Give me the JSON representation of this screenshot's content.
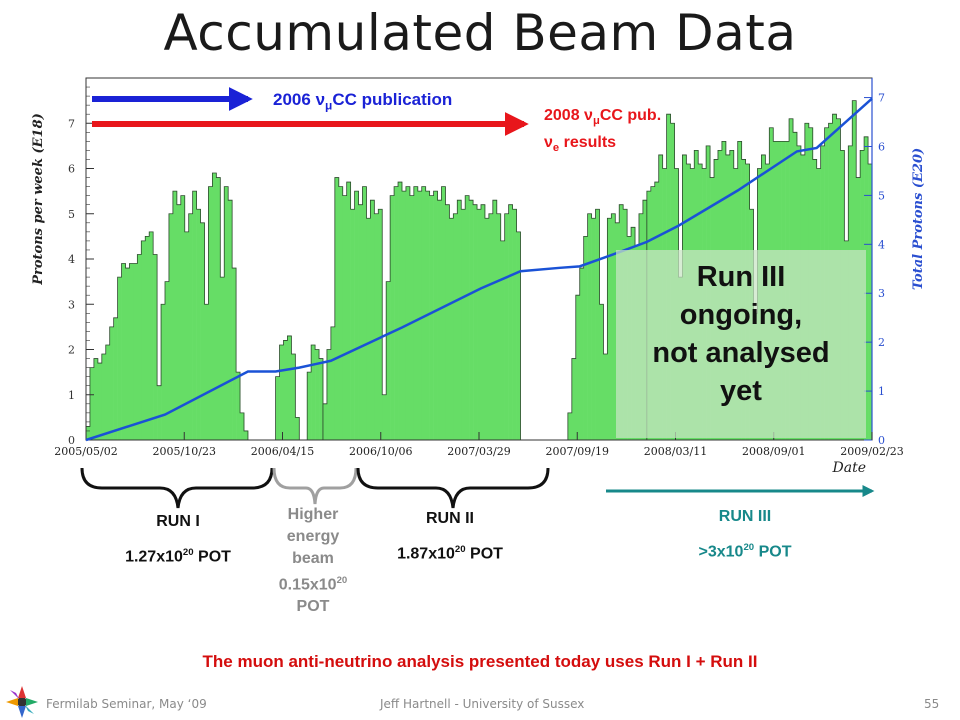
{
  "slide": {
    "title": "Accumulated Beam Data",
    "conclusion": "The muon anti-neutrino analysis presented today uses Run I + Run II",
    "footer_left": "Fermilab Seminar, May ‘09",
    "footer_center": "Jeff Hartnell - University of Sussex",
    "page_number": "55"
  },
  "annotations": {
    "pub_2006": {
      "year": "2006",
      "nu": "ν",
      "mu": "μ",
      "rest": "CC publication",
      "color": "#1a22d6"
    },
    "pub_2008": {
      "year": "2008",
      "nu": "ν",
      "mu": "μ",
      "rest": "CC pub.",
      "nu_e": "ν",
      "e_sub": "e",
      "results": "results",
      "color": "#e8161b"
    },
    "run3_overlay": [
      "Run III",
      "ongoing,",
      "not analysed",
      "yet"
    ]
  },
  "runs": [
    {
      "name": "RUN I",
      "pot_mantissa": "1.27x10",
      "pot_exp": "20",
      "pot_unit": "POT",
      "color": "#111111"
    },
    {
      "name_lines": [
        "Higher",
        "energy",
        "beam"
      ],
      "pot_mantissa": "0.15x10",
      "pot_exp": "20",
      "pot_unit": "POT",
      "color": "#8a8a8a"
    },
    {
      "name": "RUN II",
      "pot_mantissa": "1.87x10",
      "pot_exp": "20",
      "pot_unit": "POT",
      "color": "#111111"
    },
    {
      "name": "RUN III",
      "pot_prefix": ">3x10",
      "pot_exp": "20",
      "pot_unit": "POT",
      "color": "#17888a"
    }
  ],
  "chart_data": {
    "type": "bar",
    "xlabel": "Date",
    "ylabel": "Protons per week (E18)",
    "y2label": "Total Protons (E20)",
    "x_ticks": [
      "2005/05/02",
      "2005/10/23",
      "2006/04/15",
      "2006/10/06",
      "2007/03/29",
      "2007/09/19",
      "2008/03/11",
      "2008/09/01",
      "2009/02/23"
    ],
    "ylim": [
      0,
      8
    ],
    "y_ticks": [
      0,
      1,
      2,
      3,
      4,
      5,
      6,
      7
    ],
    "y2lim": [
      0,
      7.4
    ],
    "y2_ticks": [
      0,
      1,
      2,
      3,
      4,
      5,
      6,
      7
    ],
    "x_range_weeks": [
      0,
      199
    ],
    "bar_color": "#66dd66",
    "line_color": "#1a52d6",
    "axis2_color": "#2a4fd0",
    "weekly_series": {
      "name": "Protons per week (E18)",
      "segments": [
        {
          "start_week": 0,
          "values": [
            0.3,
            1.6,
            1.8,
            1.7,
            1.9,
            2.1,
            2.5,
            2.7,
            3.6,
            3.9,
            3.8,
            3.9,
            3.9,
            4.1,
            4.4,
            4.5,
            4.6,
            4.1,
            1.2,
            3.0,
            3.5,
            5.0,
            5.5,
            5.2,
            5.4,
            4.6,
            5.0,
            5.5,
            5.1,
            4.8,
            3.0,
            5.6,
            5.9,
            5.8,
            3.6,
            5.6,
            5.3,
            3.8,
            1.5,
            0.6,
            0.2
          ]
        },
        {
          "start_week": 48,
          "values": [
            1.4,
            2.1,
            2.2,
            2.3,
            1.9,
            0.5
          ]
        },
        {
          "start_week": 56,
          "values": [
            1.5,
            2.1,
            2.0,
            1.8
          ]
        },
        {
          "start_week": 60,
          "values": [
            0.8,
            2.0,
            2.5,
            5.8,
            5.6,
            5.4,
            5.7,
            5.1,
            5.5,
            5.2,
            5.6,
            4.9,
            5.3,
            5.0,
            5.1,
            1.0,
            3.5,
            5.4,
            5.6,
            5.7,
            5.5,
            5.6,
            5.4,
            5.6,
            5.5,
            5.6,
            5.5,
            5.4,
            5.5,
            5.3,
            5.6,
            5.2,
            4.9,
            5.0,
            5.3,
            5.1,
            5.4,
            5.3,
            5.2,
            5.1,
            5.2,
            4.9,
            5.0,
            5.3,
            5.0,
            4.4,
            5.0,
            5.2,
            5.1,
            4.6
          ]
        },
        {
          "start_week": 122,
          "values": [
            0.6,
            1.8,
            3.2,
            3.8,
            4.5,
            5.0,
            4.9,
            5.1,
            3.0,
            1.9,
            4.9,
            5.0,
            4.8,
            5.2,
            5.1,
            4.5,
            4.7,
            4.3,
            5.0,
            5.3
          ]
        },
        {
          "start_week": 142,
          "values": [
            5.5,
            5.6,
            5.7,
            6.3,
            6.0,
            7.2,
            7.0,
            6.0,
            3.6,
            6.3,
            6.1,
            6.0,
            6.4,
            6.1,
            6.0,
            6.5,
            5.8,
            6.2,
            6.4,
            6.6,
            6.3,
            6.4,
            6.0,
            6.6,
            6.2,
            6.1,
            5.1,
            2.8,
            6.0,
            6.3,
            6.1,
            6.9,
            6.6,
            6.6,
            6.6,
            6.6,
            7.1,
            6.8,
            6.5,
            6.3,
            7.0,
            6.9,
            6.2,
            6.0,
            6.5,
            6.9,
            7.0,
            7.2,
            7.1,
            6.4,
            4.4,
            6.5,
            7.5,
            5.8,
            6.4,
            6.7,
            6.1
          ]
        }
      ]
    },
    "cumulative_series": {
      "name": "Total Protons (E20)",
      "points": [
        [
          0,
          0.0
        ],
        [
          20,
          0.52
        ],
        [
          41,
          1.4
        ],
        [
          48,
          1.4
        ],
        [
          54,
          1.48
        ],
        [
          58,
          1.55
        ],
        [
          62,
          1.62
        ],
        [
          80,
          2.3
        ],
        [
          100,
          3.1
        ],
        [
          110,
          3.45
        ],
        [
          120,
          3.52
        ],
        [
          125,
          3.55
        ],
        [
          133,
          3.78
        ],
        [
          142,
          4.05
        ],
        [
          150,
          4.38
        ],
        [
          165,
          5.1
        ],
        [
          180,
          5.9
        ],
        [
          185,
          5.97
        ],
        [
          199,
          6.98
        ]
      ]
    }
  }
}
